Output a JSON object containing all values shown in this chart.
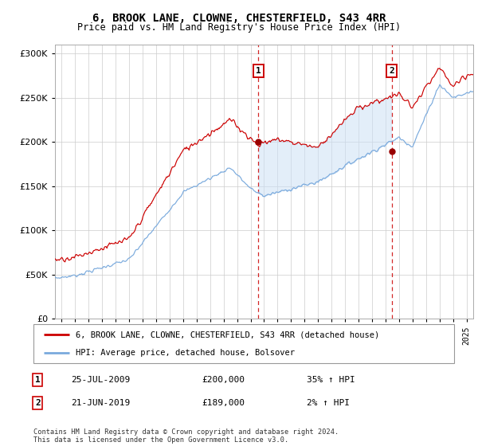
{
  "title": "6, BROOK LANE, CLOWNE, CHESTERFIELD, S43 4RR",
  "subtitle": "Price paid vs. HM Land Registry's House Price Index (HPI)",
  "legend_line1": "6, BROOK LANE, CLOWNE, CHESTERFIELD, S43 4RR (detached house)",
  "legend_line2": "HPI: Average price, detached house, Bolsover",
  "annotation1_label": "1",
  "annotation1_date": "25-JUL-2009",
  "annotation1_price": "£200,000",
  "annotation1_hpi": "35% ↑ HPI",
  "annotation2_label": "2",
  "annotation2_date": "21-JUN-2019",
  "annotation2_price": "£189,000",
  "annotation2_hpi": "2% ↑ HPI",
  "footer": "Contains HM Land Registry data © Crown copyright and database right 2024.\nThis data is licensed under the Open Government Licence v3.0.",
  "sale1_x": 2009.57,
  "sale1_y": 200000,
  "sale2_x": 2019.47,
  "sale2_y": 189000,
  "hpi_color": "#7aaadd",
  "price_color": "#cc0000",
  "sale_dot_color": "#990000",
  "shade_color": "#cce0f5",
  "ylim": [
    0,
    310000
  ],
  "xlim_start": 1994.5,
  "xlim_end": 2025.5,
  "background_color": "#ffffff",
  "grid_color": "#cccccc"
}
